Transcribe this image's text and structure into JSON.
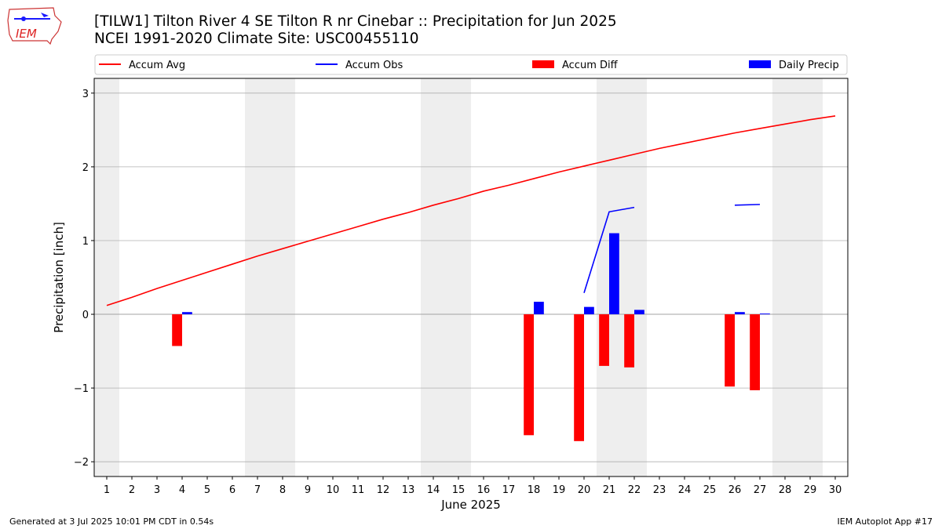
{
  "header": {
    "title_line1": "[TILW1] Tilton River 4 SE Tilton R nr Cinebar :: Precipitation for Jun 2025",
    "title_line2": "NCEI 1991-2020 Climate Site: USC00455110",
    "logo_text": "IEM"
  },
  "footer": {
    "generated": "Generated at 3 Jul 2025 10:01 PM CDT in 0.54s",
    "app": "IEM Autoplot App #17"
  },
  "colors": {
    "accum_avg": "#ff0000",
    "accum_obs": "#0000ff",
    "accum_diff": "#ff0000",
    "daily_precip": "#0000ff",
    "weekend_shade": "#eeeeee",
    "grid": "#b0b0b0"
  },
  "chart_data": {
    "type": "bar",
    "title": "[TILW1] Tilton River 4 SE Tilton R nr Cinebar :: Precipitation for Jun 2025",
    "xlabel": "June 2025",
    "ylabel": "Precipitation [inch]",
    "xlim": [
      0.5,
      30.5
    ],
    "ylim": [
      -2.2,
      3.2
    ],
    "grid": "horizontal",
    "legend_position": "top",
    "x_ticks": [
      1,
      2,
      3,
      4,
      5,
      6,
      7,
      8,
      9,
      10,
      11,
      12,
      13,
      14,
      15,
      16,
      17,
      18,
      19,
      20,
      21,
      22,
      23,
      24,
      25,
      26,
      27,
      28,
      29,
      30
    ],
    "y_ticks": [
      -2,
      -1,
      0,
      1,
      2,
      3
    ],
    "y_tick_labels": [
      "−2",
      "−1",
      "0",
      "1",
      "2",
      "3"
    ],
    "weekend_spans": [
      [
        0.5,
        1.5
      ],
      [
        6.5,
        8.5
      ],
      [
        13.5,
        15.5
      ],
      [
        20.5,
        22.5
      ],
      [
        27.5,
        29.5
      ]
    ],
    "legend": [
      "Accum Avg",
      "Accum Obs",
      "Accum Diff",
      "Daily Precip"
    ],
    "series": [
      {
        "name": "Accum Avg",
        "type": "line",
        "x": [
          1,
          2,
          3,
          4,
          5,
          6,
          7,
          8,
          9,
          10,
          11,
          12,
          13,
          14,
          15,
          16,
          17,
          18,
          19,
          20,
          21,
          22,
          23,
          24,
          25,
          26,
          27,
          28,
          29,
          30
        ],
        "values": [
          0.12,
          0.23,
          0.35,
          0.46,
          0.57,
          0.68,
          0.79,
          0.89,
          0.99,
          1.09,
          1.19,
          1.29,
          1.38,
          1.48,
          1.57,
          1.67,
          1.75,
          1.84,
          1.93,
          2.01,
          2.09,
          2.17,
          2.25,
          2.32,
          2.39,
          2.46,
          2.52,
          2.58,
          2.64,
          2.69
        ]
      },
      {
        "name": "Accum Obs",
        "type": "line",
        "segments": [
          {
            "x": [
              20,
              21,
              22
            ],
            "values": [
              0.29,
              1.39,
              1.45
            ]
          },
          {
            "x": [
              26,
              27
            ],
            "values": [
              1.48,
              1.49
            ]
          }
        ]
      },
      {
        "name": "Accum Diff",
        "type": "bar",
        "x": [
          4,
          18,
          20,
          21,
          22,
          26,
          27
        ],
        "values": [
          -0.43,
          -1.64,
          -1.72,
          -0.7,
          -0.72,
          -0.98,
          -1.03
        ]
      },
      {
        "name": "Daily Precip",
        "type": "bar",
        "x": [
          4,
          18,
          20,
          21,
          22,
          26,
          27
        ],
        "values": [
          0.03,
          0.17,
          0.1,
          1.1,
          0.06,
          0.03,
          0.01
        ]
      }
    ]
  }
}
